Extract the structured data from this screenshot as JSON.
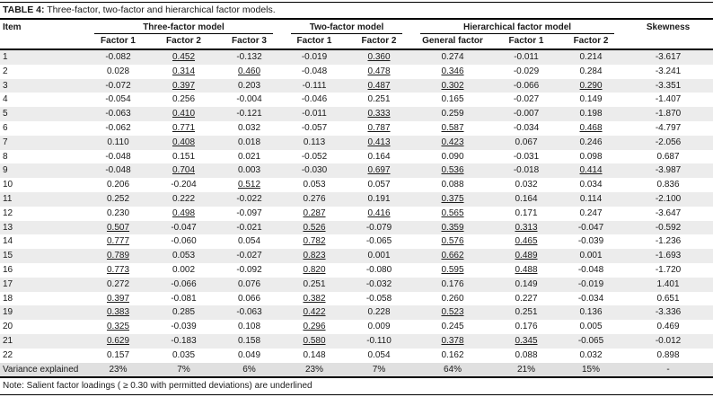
{
  "title": {
    "label": "TABLE 4:",
    "caption": " Three-factor, two-factor and hierarchical factor models."
  },
  "note": "Note: Salient factor loadings ( ≥ 0.30 with permitted deviations) are underlined",
  "table": {
    "item_header": "Item",
    "skewness_header": "Skewness",
    "groups": [
      {
        "label": "Three-factor model",
        "columns": [
          "Factor 1",
          "Factor 2",
          "Factor 3"
        ]
      },
      {
        "label": "Two-factor model",
        "columns": [
          "Factor 1",
          "Factor 2"
        ]
      },
      {
        "label": "Hierarchical factor model",
        "columns": [
          "General factor",
          "Factor 1",
          "Factor 2"
        ]
      }
    ],
    "rows": [
      {
        "item": "1",
        "values": [
          "-0.082",
          "0.452",
          "-0.132",
          "-0.019",
          "0.360",
          "0.274",
          "-0.011",
          "0.214"
        ],
        "u": [
          0,
          1,
          0,
          0,
          1,
          0,
          0,
          0
        ],
        "skew": "-3.617"
      },
      {
        "item": "2",
        "values": [
          "0.028",
          "0.314",
          "0.460",
          "-0.048",
          "0.478",
          "0.346",
          "-0.029",
          "0.284"
        ],
        "u": [
          0,
          1,
          1,
          0,
          1,
          1,
          0,
          0
        ],
        "skew": "-3.241"
      },
      {
        "item": "3",
        "values": [
          "-0.072",
          "0.397",
          "0.203",
          "-0.111",
          "0.487",
          "0.302",
          "-0.066",
          "0.290"
        ],
        "u": [
          0,
          1,
          0,
          0,
          1,
          1,
          0,
          1
        ],
        "skew": "-3.351"
      },
      {
        "item": "4",
        "values": [
          "-0.054",
          "0.256",
          "-0.004",
          "-0.046",
          "0.251",
          "0.165",
          "-0.027",
          "0.149"
        ],
        "u": [
          0,
          0,
          0,
          0,
          0,
          0,
          0,
          0
        ],
        "skew": "-1.407"
      },
      {
        "item": "5",
        "values": [
          "-0.063",
          "0.410",
          "-0.121",
          "-0.011",
          "0.333",
          "0.259",
          "-0.007",
          "0.198"
        ],
        "u": [
          0,
          1,
          0,
          0,
          1,
          0,
          0,
          0
        ],
        "skew": "-1.870"
      },
      {
        "item": "6",
        "values": [
          "-0.062",
          "0.771",
          "0.032",
          "-0.057",
          "0.787",
          "0.587",
          "-0.034",
          "0.468"
        ],
        "u": [
          0,
          1,
          0,
          0,
          1,
          1,
          0,
          1
        ],
        "skew": "-4.797"
      },
      {
        "item": "7",
        "values": [
          "0.110",
          "0.408",
          "0.018",
          "0.113",
          "0.413",
          "0.423",
          "0.067",
          "0.246"
        ],
        "u": [
          0,
          1,
          0,
          0,
          1,
          1,
          0,
          0
        ],
        "skew": "-2.056"
      },
      {
        "item": "8",
        "values": [
          "-0.048",
          "0.151",
          "0.021",
          "-0.052",
          "0.164",
          "0.090",
          "-0.031",
          "0.098"
        ],
        "u": [
          0,
          0,
          0,
          0,
          0,
          0,
          0,
          0
        ],
        "skew": "0.687"
      },
      {
        "item": "9",
        "values": [
          "-0.048",
          "0.704",
          "0.003",
          "-0.030",
          "0.697",
          "0.536",
          "-0.018",
          "0.414"
        ],
        "u": [
          0,
          1,
          0,
          0,
          1,
          1,
          0,
          1
        ],
        "skew": "-3.987"
      },
      {
        "item": "10",
        "values": [
          "0.206",
          "-0.204",
          "0.512",
          "0.053",
          "0.057",
          "0.088",
          "0.032",
          "0.034"
        ],
        "u": [
          0,
          0,
          1,
          0,
          0,
          0,
          0,
          0
        ],
        "skew": "0.836"
      },
      {
        "item": "11",
        "values": [
          "0.252",
          "0.222",
          "-0.022",
          "0.276",
          "0.191",
          "0.375",
          "0.164",
          "0.114"
        ],
        "u": [
          0,
          0,
          0,
          0,
          0,
          1,
          0,
          0
        ],
        "skew": "-2.100"
      },
      {
        "item": "12",
        "values": [
          "0.230",
          "0.498",
          "-0.097",
          "0.287",
          "0.416",
          "0.565",
          "0.171",
          "0.247"
        ],
        "u": [
          0,
          1,
          0,
          1,
          1,
          1,
          0,
          0
        ],
        "skew": "-3.647"
      },
      {
        "item": "13",
        "values": [
          "0.507",
          "-0.047",
          "-0.021",
          "0.526",
          "-0.079",
          "0.359",
          "0.313",
          "-0.047"
        ],
        "u": [
          1,
          0,
          0,
          1,
          0,
          1,
          1,
          0
        ],
        "skew": "-0.592"
      },
      {
        "item": "14",
        "values": [
          "0.777",
          "-0.060",
          "0.054",
          "0.782",
          "-0.065",
          "0.576",
          "0.465",
          "-0.039"
        ],
        "u": [
          1,
          0,
          0,
          1,
          0,
          1,
          1,
          0
        ],
        "skew": "-1.236"
      },
      {
        "item": "15",
        "values": [
          "0.789",
          "0.053",
          "-0.027",
          "0.823",
          "0.001",
          "0.662",
          "0.489",
          "0.001"
        ],
        "u": [
          1,
          0,
          0,
          1,
          0,
          1,
          1,
          0
        ],
        "skew": "-1.693"
      },
      {
        "item": "16",
        "values": [
          "0.773",
          "0.002",
          "-0.092",
          "0.820",
          "-0.080",
          "0.595",
          "0.488",
          "-0.048"
        ],
        "u": [
          1,
          0,
          0,
          1,
          0,
          1,
          1,
          0
        ],
        "skew": "-1.720"
      },
      {
        "item": "17",
        "values": [
          "0.272",
          "-0.066",
          "0.076",
          "0.251",
          "-0.032",
          "0.176",
          "0.149",
          "-0.019"
        ],
        "u": [
          0,
          0,
          0,
          0,
          0,
          0,
          0,
          0
        ],
        "skew": "1.401"
      },
      {
        "item": "18",
        "values": [
          "0.397",
          "-0.081",
          "0.066",
          "0.382",
          "-0.058",
          "0.260",
          "0.227",
          "-0.034"
        ],
        "u": [
          1,
          0,
          0,
          1,
          0,
          0,
          0,
          0
        ],
        "skew": "0.651"
      },
      {
        "item": "19",
        "values": [
          "0.383",
          "0.285",
          "-0.063",
          "0.422",
          "0.228",
          "0.523",
          "0.251",
          "0.136"
        ],
        "u": [
          1,
          0,
          0,
          1,
          0,
          1,
          0,
          0
        ],
        "skew": "-3.336"
      },
      {
        "item": "20",
        "values": [
          "0.325",
          "-0.039",
          "0.108",
          "0.296",
          "0.009",
          "0.245",
          "0.176",
          "0.005"
        ],
        "u": [
          1,
          0,
          0,
          1,
          0,
          0,
          0,
          0
        ],
        "skew": "0.469"
      },
      {
        "item": "21",
        "values": [
          "0.629",
          "-0.183",
          "0.158",
          "0.580",
          "-0.110",
          "0.378",
          "0.345",
          "-0.065"
        ],
        "u": [
          1,
          0,
          0,
          1,
          0,
          1,
          1,
          0
        ],
        "skew": "-0.012"
      },
      {
        "item": "22",
        "values": [
          "0.157",
          "0.035",
          "0.049",
          "0.148",
          "0.054",
          "0.162",
          "0.088",
          "0.032"
        ],
        "u": [
          0,
          0,
          0,
          0,
          0,
          0,
          0,
          0
        ],
        "skew": "0.898"
      }
    ],
    "variance_row": {
      "label": "Variance explained",
      "values": [
        "23%",
        "7%",
        "6%",
        "23%",
        "7%",
        "64%",
        "21%",
        "15%"
      ],
      "skew": "-"
    }
  }
}
